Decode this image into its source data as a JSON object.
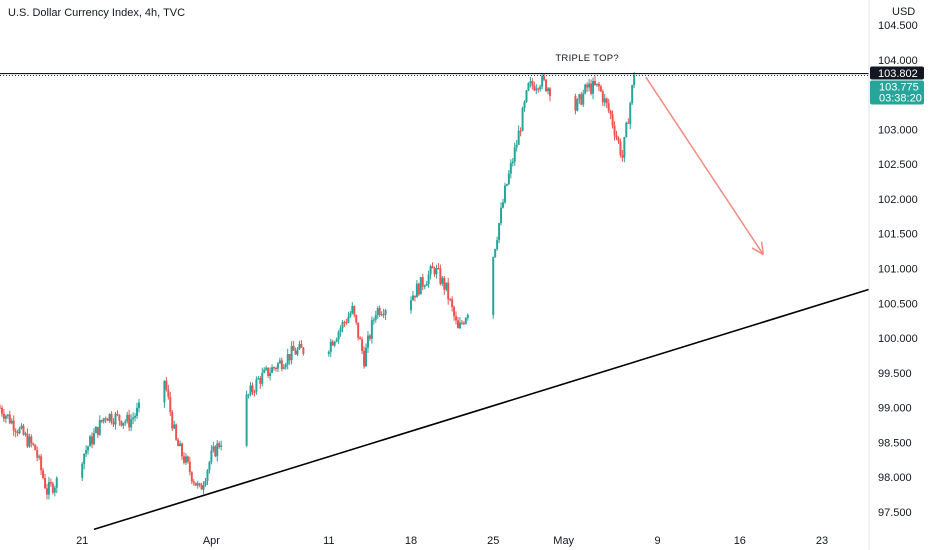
{
  "chart_title": "U.S. Dollar Currency Index, 4h, TVC",
  "currency": "USD",
  "chart_data": {
    "type": "candlestick",
    "title": "U.S. Dollar Currency Index, 4h, TVC",
    "ylim": [
      97.3,
      104.8
    ],
    "y_ticks": [
      97.5,
      98.0,
      98.5,
      99.0,
      99.5,
      100.0,
      100.5,
      101.0,
      101.5,
      102.0,
      102.5,
      103.0,
      103.5,
      104.0,
      104.5
    ],
    "y_tick_labels": [
      "97.500",
      "98.000",
      "98.500",
      "99.000",
      "99.500",
      "100.000",
      "100.500",
      "101.000",
      "101.500",
      "102.000",
      "102.500",
      "103.000",
      "103.500",
      "104.000",
      "104.500"
    ],
    "x_ticks": [
      {
        "label": "21",
        "date": "2022-03-21"
      },
      {
        "label": "Apr",
        "date": "2022-04-01"
      },
      {
        "label": "11",
        "date": "2022-04-11"
      },
      {
        "label": "18",
        "date": "2022-04-18"
      },
      {
        "label": "25",
        "date": "2022-04-25"
      },
      {
        "label": "May",
        "date": "2022-05-01"
      },
      {
        "label": "9",
        "date": "2022-05-09"
      },
      {
        "label": "16",
        "date": "2022-05-16"
      },
      {
        "label": "23",
        "date": "2022-05-23"
      }
    ],
    "x_range": [
      "2022-03-14",
      "2022-05-27"
    ],
    "candle_interval_hours": 4,
    "first_candle": "2022-03-14",
    "key_closes": [
      {
        "date": "2022-03-14",
        "value": 99.0
      },
      {
        "date": "2022-03-17",
        "value": 98.4
      },
      {
        "date": "2022-03-18",
        "value": 97.8
      },
      {
        "date": "2022-03-21",
        "value": 98.3
      },
      {
        "date": "2022-03-23",
        "value": 98.9
      },
      {
        "date": "2022-03-25",
        "value": 98.8
      },
      {
        "date": "2022-03-28",
        "value": 99.4
      },
      {
        "date": "2022-03-29",
        "value": 98.5
      },
      {
        "date": "2022-03-31",
        "value": 97.8
      },
      {
        "date": "2022-04-01",
        "value": 98.3
      },
      {
        "date": "2022-04-05",
        "value": 99.4
      },
      {
        "date": "2022-04-08",
        "value": 99.8
      },
      {
        "date": "2022-04-11",
        "value": 99.9
      },
      {
        "date": "2022-04-13",
        "value": 100.4
      },
      {
        "date": "2022-04-14",
        "value": 99.7
      },
      {
        "date": "2022-04-15",
        "value": 100.4
      },
      {
        "date": "2022-04-18",
        "value": 100.6
      },
      {
        "date": "2022-04-20",
        "value": 101.0
      },
      {
        "date": "2022-04-21",
        "value": 100.7
      },
      {
        "date": "2022-04-22",
        "value": 100.1
      },
      {
        "date": "2022-04-25",
        "value": 101.2
      },
      {
        "date": "2022-04-26",
        "value": 102.1
      },
      {
        "date": "2022-04-27",
        "value": 102.8
      },
      {
        "date": "2022-04-28",
        "value": 103.6
      },
      {
        "date": "2022-04-29",
        "value": 103.7
      },
      {
        "date": "2022-05-02",
        "value": 103.3
      },
      {
        "date": "2022-05-03",
        "value": 103.6
      },
      {
        "date": "2022-05-04",
        "value": 103.6
      },
      {
        "date": "2022-05-05",
        "value": 103.2
      },
      {
        "date": "2022-05-06",
        "value": 102.6
      },
      {
        "date": "2022-05-07",
        "value": 103.775
      }
    ],
    "candle_colors": {
      "up": "#26a69a",
      "down": "#ef5350"
    },
    "grid": false,
    "horizontal_line": {
      "value": 103.802,
      "label": "103.802"
    },
    "price_badge": {
      "value": "103.775",
      "countdown": "03:38:20",
      "color": "#26a69a"
    },
    "trendline": {
      "from": {
        "date": "2022-03-22",
        "value": 97.25
      },
      "to": {
        "date": "2022-05-27",
        "value": 100.7
      },
      "color": "#000000"
    },
    "projection_arrow": {
      "from": {
        "date": "2022-05-08",
        "value": 103.75
      },
      "to": {
        "date": "2022-05-18",
        "value": 101.2
      },
      "color": "#f28b82"
    },
    "annotations": [
      {
        "text": "TRIPLE TOP?",
        "date": "2022-05-03",
        "value": 104.0
      }
    ]
  }
}
